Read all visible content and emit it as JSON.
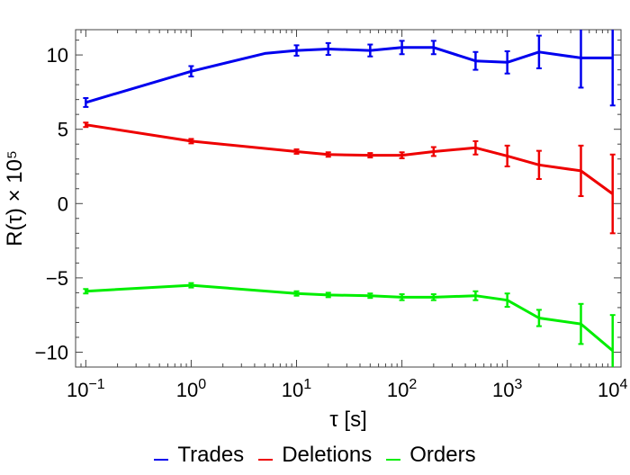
{
  "chart_data": {
    "type": "line",
    "x_scale": "log",
    "x": [
      0.1,
      1,
      10,
      20,
      50,
      100,
      200,
      500,
      1000,
      2000,
      5000,
      10000
    ],
    "xlim": [
      0.08,
      12000
    ],
    "ylim": [
      -11,
      11.7
    ],
    "xlabel": "τ [s]",
    "ylabel": "R(τ) × 10⁵",
    "x_ticks": [
      0.1,
      1,
      10,
      100,
      1000,
      10000
    ],
    "x_tick_labels": [
      {
        "base": "10",
        "exp": "−1"
      },
      {
        "base": "10",
        "exp": "0"
      },
      {
        "base": "10",
        "exp": "1"
      },
      {
        "base": "10",
        "exp": "2"
      },
      {
        "base": "10",
        "exp": "3"
      },
      {
        "base": "10",
        "exp": "4"
      }
    ],
    "y_ticks": [
      -10,
      -5,
      0,
      5,
      10
    ],
    "y_tick_labels": [
      "−10",
      "−5",
      "0",
      "5",
      "10"
    ],
    "legend_position": "bottom-center",
    "series": [
      {
        "name": "Trades",
        "color": "#0000ee",
        "points": [
          {
            "x": 0.1,
            "y": 6.8,
            "err": 0.3
          },
          {
            "x": 1,
            "y": 8.9,
            "err": 0.35
          },
          {
            "x": 5,
            "y": 10.1
          },
          {
            "x": 10,
            "y": 10.3,
            "err": 0.35
          },
          {
            "x": 20,
            "y": 10.4,
            "err": 0.4
          },
          {
            "x": 50,
            "y": 10.3,
            "err": 0.4
          },
          {
            "x": 100,
            "y": 10.5,
            "err": 0.45
          },
          {
            "x": 200,
            "y": 10.5,
            "err": 0.45
          },
          {
            "x": 500,
            "y": 9.6,
            "err": 0.6
          },
          {
            "x": 1000,
            "y": 9.5,
            "err": 0.75
          },
          {
            "x": 2000,
            "y": 10.2,
            "err": 1.1
          },
          {
            "x": 5000,
            "y": 9.8,
            "err": 2.0
          },
          {
            "x": 10000,
            "y": 9.8,
            "err": 3.2
          }
        ]
      },
      {
        "name": "Deletions",
        "color": "#ee0000",
        "points": [
          {
            "x": 0.1,
            "y": 5.3,
            "err": 0.15
          },
          {
            "x": 1,
            "y": 4.2,
            "err": 0.15
          },
          {
            "x": 10,
            "y": 3.5,
            "err": 0.15
          },
          {
            "x": 20,
            "y": 3.3,
            "err": 0.15
          },
          {
            "x": 50,
            "y": 3.25,
            "err": 0.15
          },
          {
            "x": 100,
            "y": 3.25,
            "err": 0.2
          },
          {
            "x": 200,
            "y": 3.5,
            "err": 0.3
          },
          {
            "x": 500,
            "y": 3.75,
            "err": 0.45
          },
          {
            "x": 1000,
            "y": 3.2,
            "err": 0.7
          },
          {
            "x": 2000,
            "y": 2.6,
            "err": 0.95
          },
          {
            "x": 5000,
            "y": 2.2,
            "err": 1.7
          },
          {
            "x": 10000,
            "y": 0.65,
            "err": 2.65
          }
        ]
      },
      {
        "name": "Orders",
        "color": "#00ee00",
        "points": [
          {
            "x": 0.1,
            "y": -5.9,
            "err": 0.15
          },
          {
            "x": 1,
            "y": -5.5,
            "err": 0.15
          },
          {
            "x": 10,
            "y": -6.05,
            "err": 0.15
          },
          {
            "x": 20,
            "y": -6.15,
            "err": 0.15
          },
          {
            "x": 50,
            "y": -6.2,
            "err": 0.15
          },
          {
            "x": 100,
            "y": -6.3,
            "err": 0.2
          },
          {
            "x": 200,
            "y": -6.3,
            "err": 0.2
          },
          {
            "x": 500,
            "y": -6.2,
            "err": 0.3
          },
          {
            "x": 1000,
            "y": -6.5,
            "err": 0.45
          },
          {
            "x": 2000,
            "y": -7.7,
            "err": 0.55
          },
          {
            "x": 5000,
            "y": -8.1,
            "err": 1.35
          },
          {
            "x": 10000,
            "y": -9.9,
            "err": 2.4
          }
        ]
      }
    ]
  }
}
